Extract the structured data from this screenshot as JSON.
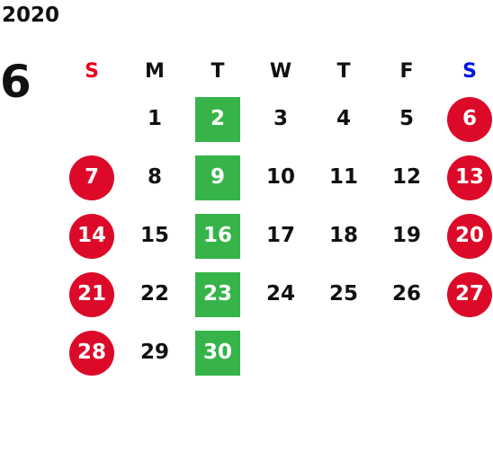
{
  "year": "2020",
  "month": "6",
  "colors": {
    "sunday": "#e8001c",
    "saturday": "#0016e0",
    "weekday": "#111111",
    "holiday_bg": "#dc0a28",
    "event_bg": "#36b44a"
  },
  "weekdays": [
    {
      "label": "S",
      "color": "#e8001c"
    },
    {
      "label": "M",
      "color": "#111111"
    },
    {
      "label": "T",
      "color": "#111111"
    },
    {
      "label": "W",
      "color": "#111111"
    },
    {
      "label": "T",
      "color": "#111111"
    },
    {
      "label": "F",
      "color": "#111111"
    },
    {
      "label": "S",
      "color": "#0016e0"
    }
  ],
  "weeks": [
    [
      {
        "day": "",
        "style": "empty"
      },
      {
        "day": "1",
        "style": "plain"
      },
      {
        "day": "2",
        "style": "event"
      },
      {
        "day": "3",
        "style": "plain"
      },
      {
        "day": "4",
        "style": "plain"
      },
      {
        "day": "5",
        "style": "plain"
      },
      {
        "day": "6",
        "style": "holiday"
      }
    ],
    [
      {
        "day": "7",
        "style": "holiday"
      },
      {
        "day": "8",
        "style": "plain"
      },
      {
        "day": "9",
        "style": "event"
      },
      {
        "day": "10",
        "style": "plain"
      },
      {
        "day": "11",
        "style": "plain"
      },
      {
        "day": "12",
        "style": "plain"
      },
      {
        "day": "13",
        "style": "holiday"
      }
    ],
    [
      {
        "day": "14",
        "style": "holiday"
      },
      {
        "day": "15",
        "style": "plain"
      },
      {
        "day": "16",
        "style": "event"
      },
      {
        "day": "17",
        "style": "plain"
      },
      {
        "day": "18",
        "style": "plain"
      },
      {
        "day": "19",
        "style": "plain"
      },
      {
        "day": "20",
        "style": "holiday"
      }
    ],
    [
      {
        "day": "21",
        "style": "holiday"
      },
      {
        "day": "22",
        "style": "plain"
      },
      {
        "day": "23",
        "style": "event"
      },
      {
        "day": "24",
        "style": "plain"
      },
      {
        "day": "25",
        "style": "plain"
      },
      {
        "day": "26",
        "style": "plain"
      },
      {
        "day": "27",
        "style": "holiday"
      }
    ],
    [
      {
        "day": "28",
        "style": "holiday"
      },
      {
        "day": "29",
        "style": "plain"
      },
      {
        "day": "30",
        "style": "event"
      },
      {
        "day": "",
        "style": "empty"
      },
      {
        "day": "",
        "style": "empty"
      },
      {
        "day": "",
        "style": "empty"
      },
      {
        "day": "",
        "style": "empty"
      }
    ]
  ]
}
